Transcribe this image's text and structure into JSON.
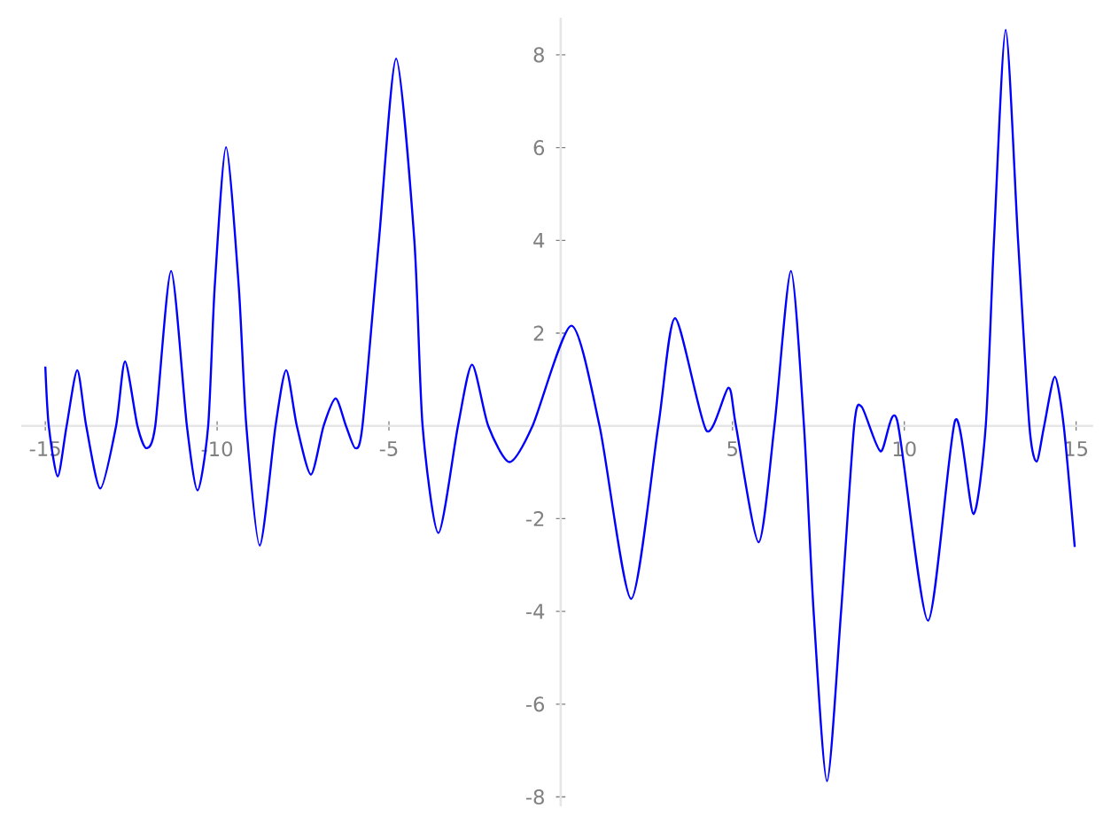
{
  "chart_data": {
    "type": "line",
    "x": [
      -15,
      -14.9,
      -14.64,
      -14.38,
      -14.07,
      -13.81,
      -13.4,
      -12.94,
      -12.68,
      -12.32,
      -12.06,
      -11.8,
      -11.34,
      -10.88,
      -10.57,
      -10.26,
      -10.07,
      -9.74,
      -9.37,
      -9.15,
      -8.76,
      -8.3,
      -7.99,
      -7.68,
      -7.27,
      -6.9,
      -6.55,
      -6.25,
      -5.98,
      -5.77,
      -5.29,
      -4.79,
      -4.26,
      -4.02,
      -3.56,
      -2.99,
      -2.58,
      -2.11,
      -1.49,
      -0.82,
      0.31,
      1.13,
      2.05,
      2.84,
      3.33,
      4.24,
      4.88,
      5.1,
      5.76,
      6.22,
      6.7,
      7.08,
      7.36,
      7.75,
      8.16,
      8.54,
      8.76,
      9.31,
      9.79,
      10.69,
      11.48,
      12.01,
      12.37,
      12.61,
      12.95,
      13.31,
      13.64,
      13.85,
      14.07,
      14.38,
      14.64,
      14.96
    ],
    "values": [
      1.28,
      0,
      -1.09,
      0,
      1.2,
      0,
      -1.35,
      0,
      1.39,
      0,
      -0.48,
      0,
      3.34,
      0,
      -1.39,
      0,
      3,
      6.01,
      3,
      0,
      -2.58,
      0,
      1.2,
      0,
      -1.05,
      0,
      0.59,
      0,
      -0.48,
      0,
      4,
      7.92,
      4,
      0,
      -2.31,
      0,
      1.32,
      0,
      -0.78,
      0,
      2.16,
      0,
      -3.73,
      0,
      2.32,
      -0.1,
      0.82,
      0,
      -2.51,
      0,
      3.34,
      0,
      -4,
      -7.66,
      -4,
      0,
      0.41,
      -0.55,
      0.12,
      -4.2,
      0.12,
      -1.9,
      0,
      4,
      8.54,
      4,
      0,
      -0.77,
      0,
      1.06,
      0,
      -2.61
    ],
    "color": "#0000ff",
    "xlim": [
      -15.7,
      15.5
    ],
    "ylim": [
      -8.2,
      8.8
    ],
    "xticks": [
      -15,
      -10,
      -5,
      5,
      10,
      15
    ],
    "yticks": [
      -8,
      -6,
      -4,
      -2,
      2,
      4,
      6,
      8
    ]
  }
}
